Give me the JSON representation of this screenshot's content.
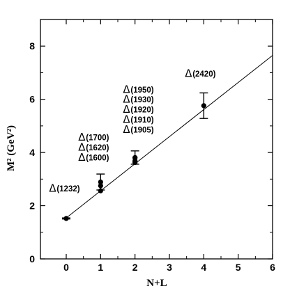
{
  "chart_data": {
    "type": "scatter",
    "title": "",
    "xlabel": "N+L",
    "ylabel": "M² (GeV²)",
    "xlim": [
      -0.75,
      6
    ],
    "ylim": [
      0,
      9
    ],
    "x_ticks": [
      0,
      1,
      2,
      3,
      4,
      5,
      6
    ],
    "y_ticks": [
      0,
      2,
      4,
      6,
      8
    ],
    "grid": false,
    "legend": "none",
    "colors": {
      "marks": "#000000",
      "background": "#ffffff"
    },
    "points": [
      {
        "x": 0,
        "y": 1.52,
        "err": 0.02
      },
      {
        "x": 1,
        "y": 2.56
      },
      {
        "x": 1,
        "y": 2.75
      },
      {
        "x": 1,
        "y": 2.89,
        "err": 0.3
      },
      {
        "x": 2,
        "y": 3.62
      },
      {
        "x": 2,
        "y": 3.65
      },
      {
        "x": 2,
        "y": 3.69
      },
      {
        "x": 2,
        "y": 3.8
      },
      {
        "x": 2,
        "y": 3.81,
        "err": 0.25
      },
      {
        "x": 4,
        "y": 5.76,
        "err": 0.48
      }
    ],
    "fit_line": {
      "x": [
        0,
        6
      ],
      "y": [
        1.54,
        7.65
      ]
    },
    "annotations": [
      {
        "symbol": "Δ",
        "text": "(1232)",
        "x": -0.5,
        "y": 2.65
      },
      {
        "symbol": "Δ",
        "text": "(1600)",
        "x": 0.35,
        "y": 3.82
      },
      {
        "symbol": "Δ",
        "text": "(1620)",
        "x": 0.35,
        "y": 4.2
      },
      {
        "symbol": "Δ",
        "text": "(1700)",
        "x": 0.35,
        "y": 4.58
      },
      {
        "symbol": "Δ",
        "text": "(1905)",
        "x": 1.65,
        "y": 4.87
      },
      {
        "symbol": "Δ",
        "text": "(1910)",
        "x": 1.65,
        "y": 5.25
      },
      {
        "symbol": "Δ",
        "text": "(1920)",
        "x": 1.65,
        "y": 5.62
      },
      {
        "symbol": "Δ",
        "text": "(1930)",
        "x": 1.65,
        "y": 6.0
      },
      {
        "symbol": "Δ",
        "text": "(1950)",
        "x": 1.65,
        "y": 6.37
      },
      {
        "symbol": "Δ",
        "text": "(2420)",
        "x": 3.45,
        "y": 6.97
      }
    ]
  }
}
